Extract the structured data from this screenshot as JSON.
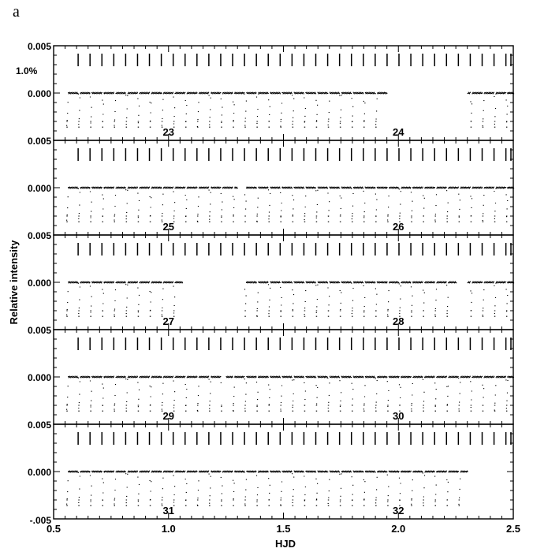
{
  "figure": {
    "panel_label": "a"
  },
  "chart_data": {
    "type": "scatter",
    "xlabel": "HJD",
    "ylabel": "Relative intensity",
    "xlim": [
      0.5,
      2.5
    ],
    "ylim": [
      -0.005,
      0.005
    ],
    "x_ticks": [
      "0.5",
      "1.0",
      "1.5",
      "2.0",
      "2.5"
    ],
    "y_top_tick": "0.005",
    "y_mid_tick": "0.000",
    "y_bottom_tick": "-.005",
    "y_separator_tick": "0.005",
    "scale_bar_label": "1.0%",
    "marker_color": "#000000",
    "eclipse_period": 0.0517,
    "eclipse_epoch": 0.555,
    "panels": [
      {
        "day_labels": [
          "23",
          "24"
        ],
        "coverage": [
          [
            0.555,
            1.95
          ],
          [
            2.3,
            2.5
          ]
        ]
      },
      {
        "day_labels": [
          "25",
          "26"
        ],
        "coverage": [
          [
            0.555,
            1.3
          ],
          [
            1.33,
            2.3
          ],
          [
            2.3,
            2.5
          ]
        ]
      },
      {
        "day_labels": [
          "27",
          "28"
        ],
        "coverage": [
          [
            0.555,
            1.06
          ],
          [
            1.33,
            2.25
          ],
          [
            2.3,
            2.5
          ]
        ]
      },
      {
        "day_labels": [
          "29",
          "30"
        ],
        "coverage": [
          [
            0.555,
            1.23
          ],
          [
            1.25,
            2.5
          ]
        ]
      },
      {
        "day_labels": [
          "31",
          "32"
        ],
        "coverage": [
          [
            0.555,
            2.3
          ]
        ]
      }
    ]
  }
}
